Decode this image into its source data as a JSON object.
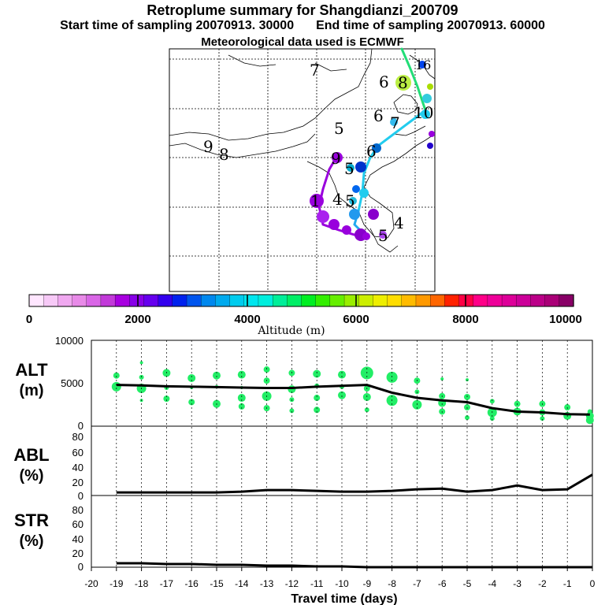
{
  "title": "Retroplume summary for Shangdianzi_200709",
  "subtitle_start": "Start time of sampling 20070913. 30000",
  "subtitle_end": "End time of sampling 20070913. 60000",
  "met_line": "Meteorological data used is ECMWF",
  "colorbar": {
    "label": "Altitude (m)",
    "tick_labels": [
      "0",
      "2000",
      "4000",
      "6000",
      "8000",
      "10000"
    ],
    "colors": [
      "#ffe6ff",
      "#f7c9f7",
      "#f0a8f0",
      "#e88ae8",
      "#d966e6",
      "#c23ad9",
      "#a800e0",
      "#8800e8",
      "#6600ee",
      "#3300ee",
      "#0022ee",
      "#0055ee",
      "#0088ee",
      "#00aaee",
      "#00ccee",
      "#00e6ee",
      "#00eedd",
      "#00ee99",
      "#00ee66",
      "#00ee22",
      "#33ee00",
      "#66ee00",
      "#99ee00",
      "#ccee00",
      "#eeee00",
      "#ffdd00",
      "#ffbb00",
      "#ff9900",
      "#ff6600",
      "#ff2200",
      "#ff0044",
      "#ff0088",
      "#ee0099",
      "#dd0099",
      "#cc0099",
      "#bb0088",
      "#aa0077",
      "#880066"
    ]
  },
  "map": {
    "labels": [
      {
        "text": "7",
        "color": "#000000"
      },
      {
        "text": "6",
        "color": "#000000"
      },
      {
        "text": "8",
        "color": "#000000"
      },
      {
        "text": "16",
        "color": "#0033ee"
      },
      {
        "text": "5",
        "color": "#99ee00"
      },
      {
        "text": "6",
        "color": "#22aaee"
      },
      {
        "text": "7",
        "color": "#22aaee"
      },
      {
        "text": "10",
        "color": "#00cccc"
      },
      {
        "text": "9",
        "color": "#000000"
      },
      {
        "text": "8",
        "color": "#000000"
      },
      {
        "text": "9",
        "color": "#aa00ee"
      },
      {
        "text": "5",
        "color": "#00aacc"
      },
      {
        "text": "6",
        "color": "#0033cc"
      },
      {
        "text": "4",
        "color": "#000000"
      },
      {
        "text": "5",
        "color": "#0088ee"
      },
      {
        "text": "4",
        "color": "#000000"
      },
      {
        "text": "5",
        "color": "#9900cc"
      },
      {
        "text": "1",
        "color": "#9900cc"
      }
    ]
  },
  "chart_data": [
    {
      "type": "scatter",
      "title": "",
      "ylabel": "ALT (m)",
      "ylim": [
        0,
        10000
      ],
      "yticks": [
        "0",
        "5000",
        "10000"
      ],
      "x": [
        -19,
        -18,
        -17,
        -16,
        -15,
        -14,
        -13,
        -12,
        -11,
        -10,
        -9,
        -8,
        -7,
        -6,
        -5,
        -4,
        -3,
        -2,
        -1,
        -0.1
      ],
      "median_line": [
        4800,
        4750,
        4650,
        4600,
        4550,
        4500,
        4450,
        4450,
        4600,
        4700,
        4800,
        3900,
        3300,
        3000,
        2800,
        2100,
        1700,
        1600,
        1400,
        1350
      ],
      "points": [
        {
          "x": -19,
          "y": 5900,
          "r": 4
        },
        {
          "x": -19,
          "y": 4600,
          "r": 6
        },
        {
          "x": -18,
          "y": 7400,
          "r": 2
        },
        {
          "x": -18,
          "y": 5700,
          "r": 3
        },
        {
          "x": -18,
          "y": 4400,
          "r": 6
        },
        {
          "x": -18,
          "y": 3000,
          "r": 2
        },
        {
          "x": -17,
          "y": 6200,
          "r": 5
        },
        {
          "x": -17,
          "y": 4500,
          "r": 3
        },
        {
          "x": -17,
          "y": 3200,
          "r": 4
        },
        {
          "x": -16,
          "y": 5600,
          "r": 5
        },
        {
          "x": -16,
          "y": 4500,
          "r": 2
        },
        {
          "x": -16,
          "y": 2800,
          "r": 4
        },
        {
          "x": -15,
          "y": 5900,
          "r": 5
        },
        {
          "x": -15,
          "y": 4600,
          "r": 2
        },
        {
          "x": -15,
          "y": 2600,
          "r": 5
        },
        {
          "x": -14,
          "y": 6000,
          "r": 5
        },
        {
          "x": -14,
          "y": 4500,
          "r": 2
        },
        {
          "x": -14,
          "y": 3300,
          "r": 5
        },
        {
          "x": -14,
          "y": 2300,
          "r": 4
        },
        {
          "x": -13,
          "y": 6600,
          "r": 4
        },
        {
          "x": -13,
          "y": 5300,
          "r": 4
        },
        {
          "x": -13,
          "y": 3500,
          "r": 6
        },
        {
          "x": -13,
          "y": 2100,
          "r": 4
        },
        {
          "x": -12,
          "y": 6200,
          "r": 4
        },
        {
          "x": -12,
          "y": 4300,
          "r": 5
        },
        {
          "x": -12,
          "y": 3100,
          "r": 3
        },
        {
          "x": -12,
          "y": 1800,
          "r": 3
        },
        {
          "x": -11,
          "y": 6100,
          "r": 5
        },
        {
          "x": -11,
          "y": 4700,
          "r": 3
        },
        {
          "x": -11,
          "y": 3300,
          "r": 4
        },
        {
          "x": -11,
          "y": 1900,
          "r": 4
        },
        {
          "x": -10,
          "y": 6000,
          "r": 5
        },
        {
          "x": -10,
          "y": 4600,
          "r": 3
        },
        {
          "x": -10,
          "y": 3600,
          "r": 5
        },
        {
          "x": -9,
          "y": 7600,
          "r": 1
        },
        {
          "x": -9,
          "y": 6200,
          "r": 8
        },
        {
          "x": -9,
          "y": 4400,
          "r": 4
        },
        {
          "x": -9,
          "y": 3400,
          "r": 5
        },
        {
          "x": -9,
          "y": 1900,
          "r": 3
        },
        {
          "x": -8,
          "y": 5700,
          "r": 7
        },
        {
          "x": -8,
          "y": 3000,
          "r": 7
        },
        {
          "x": -7,
          "y": 5300,
          "r": 4
        },
        {
          "x": -7,
          "y": 4000,
          "r": 3
        },
        {
          "x": -7,
          "y": 2500,
          "r": 6
        },
        {
          "x": -6,
          "y": 5500,
          "r": 2
        },
        {
          "x": -6,
          "y": 3500,
          "r": 4
        },
        {
          "x": -6,
          "y": 2700,
          "r": 5
        },
        {
          "x": -6,
          "y": 1700,
          "r": 4
        },
        {
          "x": -5,
          "y": 5400,
          "r": 2
        },
        {
          "x": -5,
          "y": 3400,
          "r": 4
        },
        {
          "x": -5,
          "y": 2200,
          "r": 4
        },
        {
          "x": -5,
          "y": 1000,
          "r": 3
        },
        {
          "x": -4,
          "y": 2900,
          "r": 3
        },
        {
          "x": -4,
          "y": 1600,
          "r": 6
        },
        {
          "x": -4,
          "y": 900,
          "r": 3
        },
        {
          "x": -3,
          "y": 2600,
          "r": 4
        },
        {
          "x": -3,
          "y": 1700,
          "r": 5
        },
        {
          "x": -2,
          "y": 2600,
          "r": 4
        },
        {
          "x": -2,
          "y": 1600,
          "r": 4
        },
        {
          "x": -2,
          "y": 900,
          "r": 3
        },
        {
          "x": -1,
          "y": 2200,
          "r": 4
        },
        {
          "x": -1,
          "y": 1200,
          "r": 5
        },
        {
          "x": -0.1,
          "y": 1700,
          "r": 3
        },
        {
          "x": -0.1,
          "y": 1200,
          "r": 5
        },
        {
          "x": -0.1,
          "y": 700,
          "r": 5
        }
      ],
      "point_color": "#22ee66"
    },
    {
      "type": "line",
      "ylabel": "ABL (%)",
      "ylim": [
        0,
        90
      ],
      "yticks": [
        "0",
        "20",
        "40",
        "60",
        "80"
      ],
      "x": [
        -19,
        -18,
        -17,
        -16,
        -15,
        -14,
        -13,
        -12,
        -11,
        -10,
        -9,
        -8,
        -7,
        -6,
        -5,
        -4,
        -3,
        -2,
        -1,
        0
      ],
      "values": [
        4,
        4,
        4,
        4,
        4,
        5,
        7,
        7,
        6,
        5,
        5,
        6,
        8,
        9,
        5,
        7,
        13,
        7,
        8,
        27
      ]
    },
    {
      "type": "line",
      "ylabel": "STR (%)",
      "ylim": [
        0,
        90
      ],
      "yticks": [
        "0",
        "20",
        "40",
        "60",
        "80"
      ],
      "x": [
        -19,
        -18,
        -17,
        -16,
        -15,
        -14,
        -13,
        -12,
        -11,
        -10,
        -9,
        -8,
        -7,
        -6,
        -5,
        -4,
        -3,
        -2,
        -1,
        0
      ],
      "values": [
        5,
        5,
        4,
        4,
        3,
        3,
        2,
        2,
        1,
        1,
        0,
        0,
        0,
        0,
        0,
        0,
        0,
        0,
        0,
        0
      ],
      "xlabel": "Travel time (days)",
      "xticks": [
        "-20",
        "-19",
        "-18",
        "-17",
        "-16",
        "-15",
        "-14",
        "-13",
        "-12",
        "-11",
        "-10",
        "-9",
        "-8",
        "-7",
        "-6",
        "-5",
        "-4",
        "-3",
        "-2",
        "-1",
        "0"
      ]
    }
  ]
}
